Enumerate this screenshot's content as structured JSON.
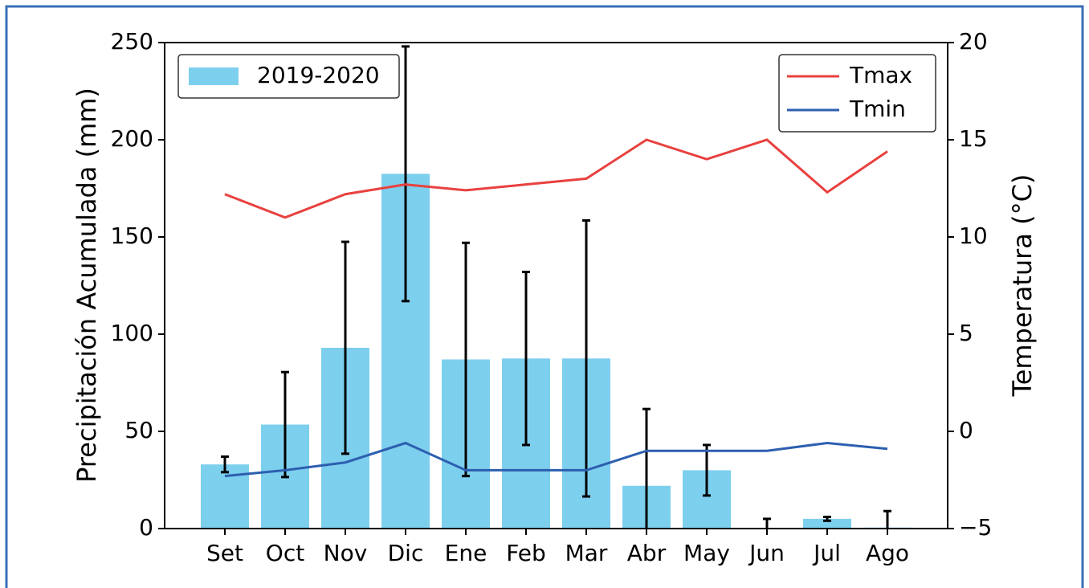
{
  "chart_data": {
    "type": "bar",
    "categories": [
      "Set",
      "Oct",
      "Nov",
      "Dic",
      "Ene",
      "Feb",
      "Mar",
      "Abr",
      "May",
      "Jun",
      "Jul",
      "Ago"
    ],
    "series": [
      {
        "name": "2019-2020",
        "color": "#7dcfee",
        "values": [
          33,
          53.5,
          93,
          182.5,
          87,
          87.5,
          87.5,
          22,
          30,
          0,
          5,
          0.5
        ],
        "errors": [
          4,
          27,
          54.5,
          65.5,
          60,
          44.5,
          71,
          39.5,
          13,
          5,
          1,
          8.5
        ]
      },
      {
        "name": "Tmax",
        "type": "line",
        "axis": "y2",
        "color": "#e8413f",
        "values": [
          12.2,
          11.0,
          12.2,
          12.7,
          12.4,
          12.7,
          13.0,
          15.0,
          14.0,
          15.0,
          12.3,
          14.4
        ]
      },
      {
        "name": "Tmin",
        "type": "line",
        "axis": "y2",
        "color": "#2d5fb0",
        "values": [
          -2.3,
          -2.0,
          -1.6,
          -0.6,
          -2.0,
          -2.0,
          -2.0,
          -1.0,
          -1.0,
          -1.0,
          -0.6,
          -0.9
        ]
      }
    ],
    "ylabel": "Precipitación Acumulada (mm)",
    "y2label": "Temperatura (°C)",
    "ylim": [
      0,
      250
    ],
    "yticks": [
      0,
      50,
      100,
      150,
      200,
      250
    ],
    "y2lim": [
      -5,
      20
    ],
    "y2ticks": [
      {
        "value": -5,
        "label": "−5"
      },
      0,
      5,
      10,
      15,
      20
    ],
    "legend": [
      "upper left",
      "upper right"
    ]
  }
}
